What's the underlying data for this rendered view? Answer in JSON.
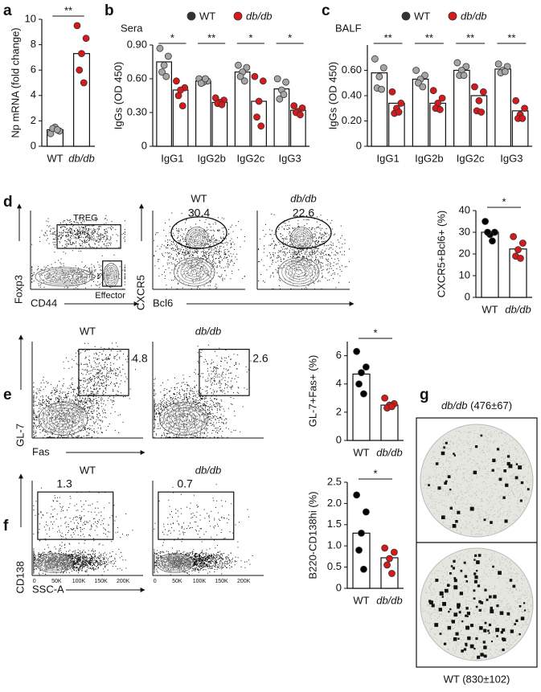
{
  "panel_labels": [
    "a",
    "b",
    "c",
    "d",
    "e",
    "f",
    "g"
  ],
  "chart_data": [
    {
      "type": "bar",
      "ylabel": "Np mRNA (fold change)",
      "categories": [
        "WT",
        "db/db"
      ],
      "values": [
        1.3,
        7.3
      ],
      "points": [
        [
          1.0,
          1.2,
          1.5,
          1.4,
          1.3
        ],
        [
          9.5,
          8.5,
          7.3,
          6.0,
          5.0
        ]
      ],
      "point_colors": [
        "#a6a6a6",
        "#d7191c"
      ],
      "significance": "**",
      "ylim": [
        0,
        10
      ],
      "yticks": [
        0,
        2,
        4,
        6,
        8,
        10
      ]
    },
    {
      "type": "bar",
      "title": "Sera",
      "ylabel": "IgGs (OD 450)",
      "categories": [
        "IgG1",
        "IgG2b",
        "IgG2c",
        "IgG3"
      ],
      "series": [
        {
          "name": "WT",
          "color": "#a6a6a6",
          "values": [
            0.75,
            0.58,
            0.66,
            0.51
          ],
          "points": [
            [
              0.87,
              0.8,
              0.72,
              0.66,
              0.62
            ],
            [
              0.6,
              0.58,
              0.57,
              0.56,
              0.6
            ],
            [
              0.72,
              0.7,
              0.66,
              0.62,
              0.58
            ],
            [
              0.6,
              0.57,
              0.5,
              0.42,
              0.46
            ]
          ]
        },
        {
          "name": "db/db",
          "color": "#d7191c",
          "values": [
            0.5,
            0.39,
            0.4,
            0.32
          ],
          "points": [
            [
              0.58,
              0.52,
              0.5,
              0.45,
              0.36
            ],
            [
              0.43,
              0.41,
              0.39,
              0.38,
              0.37
            ],
            [
              0.62,
              0.58,
              0.4,
              0.26,
              0.18
            ],
            [
              0.36,
              0.34,
              0.31,
              0.3,
              0.28
            ]
          ]
        }
      ],
      "significance": [
        "*",
        "**",
        "*",
        "*"
      ],
      "ylim": [
        0,
        0.9
      ],
      "yticks": [
        0,
        {
          "value": 0.3,
          "label": "0.30"
        },
        {
          "value": 0.6,
          "label": "0.60"
        },
        {
          "value": 0.9,
          "label": "0.90"
        }
      ]
    },
    {
      "type": "bar",
      "title": "BALF",
      "ylabel": "IgGs (OD 450)",
      "categories": [
        "IgG1",
        "IgG2b",
        "IgG2c",
        "IgG3"
      ],
      "series": [
        {
          "name": "WT",
          "color": "#a6a6a6",
          "values": [
            0.58,
            0.53,
            0.6,
            0.61
          ],
          "points": [
            [
              0.69,
              0.62,
              0.55,
              0.46,
              0.45
            ],
            [
              0.6,
              0.56,
              0.53,
              0.5,
              0.47
            ],
            [
              0.66,
              0.63,
              0.6,
              0.56,
              0.56
            ],
            [
              0.65,
              0.63,
              0.6,
              0.58,
              0.59
            ]
          ]
        },
        {
          "name": "db/db",
          "color": "#d7191c",
          "values": [
            0.34,
            0.34,
            0.4,
            0.28
          ],
          "points": [
            [
              0.43,
              0.34,
              0.3,
              0.26,
              0.27
            ],
            [
              0.44,
              0.38,
              0.34,
              0.3,
              0.29
            ],
            [
              0.47,
              0.43,
              0.36,
              0.28,
              0.27
            ],
            [
              0.36,
              0.3,
              0.25,
              0.22,
              0.22
            ]
          ]
        }
      ],
      "significance": [
        "**",
        "**",
        "**",
        "**"
      ],
      "ylim": [
        0,
        0.8
      ],
      "yticks": [
        0,
        {
          "value": 0.2,
          "label": "0.20"
        },
        {
          "value": 0.4,
          "label": "0.40"
        },
        {
          "value": 0.6,
          "label": "0.60"
        }
      ]
    },
    {
      "type": "bar",
      "ylabel": "CXCR5+Bcl6+ (%)",
      "categories": [
        "WT",
        "db/db"
      ],
      "values": [
        30,
        22.3
      ],
      "points": [
        [
          35,
          30,
          29,
          30,
          26
        ],
        [
          28,
          25,
          22,
          19,
          18
        ]
      ],
      "point_colors": [
        "#000000",
        "#d7191c"
      ],
      "significance": "*",
      "ylim": [
        0,
        40
      ],
      "yticks": [
        0,
        10,
        20,
        30,
        40
      ]
    },
    {
      "type": "bar",
      "ylabel": "GL-7+Fas+ (%)",
      "categories": [
        "WT",
        "db/db"
      ],
      "values": [
        4.7,
        2.5
      ],
      "points": [
        [
          6.3,
          5.2,
          4.8,
          4.0,
          3.3
        ],
        [
          3.0,
          2.6,
          2.5,
          2.3,
          2.4
        ]
      ],
      "point_colors": [
        "#000000",
        "#d7191c"
      ],
      "significance": "*",
      "ylim": [
        0,
        7
      ],
      "yticks": [
        0,
        2,
        4,
        6
      ]
    },
    {
      "type": "bar",
      "ylabel": "B220-CD138hi (%)",
      "categories": [
        "WT",
        "db/db"
      ],
      "values": [
        1.3,
        0.72
      ],
      "points": [
        [
          2.2,
          1.8,
          1.3,
          0.9,
          0.45
        ],
        [
          0.95,
          0.85,
          0.7,
          0.55,
          0.35
        ]
      ],
      "point_colors": [
        "#000000",
        "#d7191c"
      ],
      "significance": "*",
      "ylim": [
        0,
        2.5
      ],
      "yticks": [
        0,
        0.5,
        {
          "value": 1,
          "label": "1.0"
        },
        1.5,
        {
          "value": 2,
          "label": "2.0"
        },
        2.5
      ]
    }
  ],
  "flow": {
    "d": {
      "treg": "TREG",
      "effector": "Effector",
      "y1": "Foxp3",
      "x1": "CD44",
      "cond": [
        "WT",
        "db/db"
      ],
      "y": "CXCR5",
      "x": "Bcl6",
      "gates": [
        30.4,
        22.6
      ]
    },
    "e": {
      "cond": [
        "WT",
        "db/db"
      ],
      "y": "GL-7",
      "x": "Fas",
      "gates": [
        4.8,
        2.6
      ]
    },
    "f": {
      "cond": [
        "WT",
        "db/db"
      ],
      "y": "CD138",
      "x": "SSC-A",
      "gates": [
        1.3,
        0.7
      ],
      "xticks": [
        "0",
        "50K",
        "100K",
        "150K",
        "200K"
      ]
    }
  },
  "elispot": {
    "top_cond": "db/db",
    "top_count": "(476±67)",
    "bottom": "WT (830±102)"
  }
}
